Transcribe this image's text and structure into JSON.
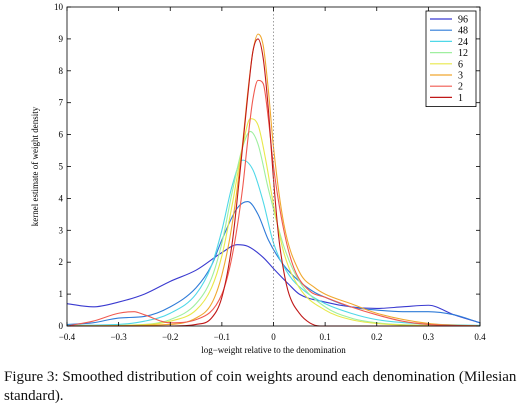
{
  "caption": "Figure 3: Smoothed distribution of coin weights around each denomination (Milesian standard).",
  "chart_data": {
    "type": "line",
    "title": "",
    "xlabel": "log−weight relative to the denomination",
    "ylabel": "kernel estimate of weight density",
    "xlim": [
      -0.4,
      0.4
    ],
    "ylim": [
      0,
      10
    ],
    "xticks": [
      -0.4,
      -0.3,
      -0.2,
      -0.1,
      0,
      0.1,
      0.2,
      0.3,
      0.4
    ],
    "xtick_labels": [
      "−0.4",
      "−0.3",
      "−0.2",
      "−0.1",
      "0",
      "0.1",
      "0.2",
      "0.3",
      "0.4"
    ],
    "yticks": [
      0,
      1,
      2,
      3,
      4,
      5,
      6,
      7,
      8,
      9,
      10
    ],
    "ytick_labels": [
      "0",
      "1",
      "2",
      "3",
      "4",
      "5",
      "6",
      "7",
      "8",
      "9",
      "10"
    ],
    "grid": false,
    "legend_position": "top-right",
    "reference_line": {
      "x": 0,
      "style": "dotted"
    },
    "series": [
      {
        "name": "96",
        "color": "#3a3ad0",
        "x": [
          -0.4,
          -0.35,
          -0.3,
          -0.25,
          -0.2,
          -0.15,
          -0.1,
          -0.07,
          -0.05,
          -0.02,
          0,
          0.03,
          0.05,
          0.1,
          0.15,
          0.2,
          0.25,
          0.3,
          0.35,
          0.4
        ],
        "y": [
          0.7,
          0.6,
          0.75,
          1.0,
          1.4,
          1.75,
          2.3,
          2.55,
          2.5,
          2.15,
          1.8,
          1.3,
          1.0,
          0.75,
          0.6,
          0.55,
          0.6,
          0.65,
          0.35,
          0.1
        ]
      },
      {
        "name": "48",
        "color": "#2f7bd8",
        "x": [
          -0.4,
          -0.35,
          -0.3,
          -0.25,
          -0.2,
          -0.15,
          -0.12,
          -0.1,
          -0.07,
          -0.05,
          -0.03,
          -0.01,
          0.02,
          0.05,
          0.08,
          0.1,
          0.15,
          0.2,
          0.25,
          0.3,
          0.35,
          0.4
        ],
        "y": [
          0.05,
          0.1,
          0.25,
          0.3,
          0.6,
          1.2,
          1.9,
          2.7,
          3.7,
          3.9,
          3.5,
          2.7,
          1.9,
          1.4,
          1.05,
          0.9,
          0.6,
          0.5,
          0.45,
          0.45,
          0.35,
          0.1
        ]
      },
      {
        "name": "24",
        "color": "#4fd8e8",
        "x": [
          -0.4,
          -0.3,
          -0.25,
          -0.2,
          -0.15,
          -0.12,
          -0.1,
          -0.08,
          -0.06,
          -0.04,
          -0.02,
          0,
          0.03,
          0.06,
          0.1,
          0.15,
          0.2,
          0.3,
          0.4
        ],
        "y": [
          0.02,
          0.05,
          0.15,
          0.4,
          1.0,
          1.9,
          3.0,
          4.4,
          5.2,
          4.9,
          3.9,
          2.6,
          1.6,
          1.1,
          0.7,
          0.4,
          0.2,
          0.06,
          0.02
        ]
      },
      {
        "name": "12",
        "color": "#9fef9f",
        "x": [
          -0.4,
          -0.25,
          -0.2,
          -0.15,
          -0.12,
          -0.1,
          -0.08,
          -0.06,
          -0.045,
          -0.03,
          -0.01,
          0.02,
          0.05,
          0.1,
          0.15,
          0.2,
          0.3,
          0.4
        ],
        "y": [
          0.0,
          0.05,
          0.2,
          0.7,
          1.5,
          2.6,
          4.2,
          5.6,
          6.1,
          5.7,
          4.3,
          2.5,
          1.4,
          0.6,
          0.25,
          0.1,
          0.02,
          0.0
        ]
      },
      {
        "name": "6",
        "color": "#e8e84a",
        "x": [
          -0.4,
          -0.25,
          -0.2,
          -0.15,
          -0.12,
          -0.1,
          -0.08,
          -0.06,
          -0.045,
          -0.03,
          -0.015,
          0,
          0.02,
          0.05,
          0.1,
          0.15,
          0.2,
          0.3,
          0.4
        ],
        "y": [
          0.0,
          0.04,
          0.15,
          0.5,
          1.2,
          2.2,
          3.8,
          5.6,
          6.5,
          6.3,
          5.2,
          3.8,
          2.3,
          1.2,
          0.5,
          0.2,
          0.08,
          0.01,
          0.0
        ]
      },
      {
        "name": "3",
        "color": "#f0a830",
        "x": [
          -0.4,
          -0.2,
          -0.15,
          -0.12,
          -0.1,
          -0.08,
          -0.06,
          -0.05,
          -0.04,
          -0.03,
          -0.02,
          -0.01,
          0,
          0.02,
          0.05,
          0.08,
          0.1,
          0.15,
          0.2,
          0.3,
          0.4
        ],
        "y": [
          0.0,
          0.05,
          0.25,
          0.7,
          1.6,
          3.2,
          5.7,
          7.3,
          8.6,
          9.15,
          8.8,
          7.4,
          5.6,
          3.2,
          1.7,
          1.2,
          1.0,
          0.7,
          0.4,
          0.08,
          0.0
        ]
      },
      {
        "name": "2",
        "color": "#f05a50",
        "x": [
          -0.4,
          -0.35,
          -0.3,
          -0.27,
          -0.25,
          -0.2,
          -0.15,
          -0.1,
          -0.08,
          -0.06,
          -0.05,
          -0.04,
          -0.03,
          -0.02,
          -0.01,
          0,
          0.02,
          0.04,
          0.07,
          0.1,
          0.15,
          0.2,
          0.25,
          0.3,
          0.4
        ],
        "y": [
          0.0,
          0.15,
          0.4,
          0.45,
          0.35,
          0.1,
          0.2,
          1.0,
          2.2,
          4.3,
          5.8,
          7.1,
          7.7,
          7.6,
          6.5,
          5.0,
          3.0,
          1.8,
          1.1,
          0.9,
          0.6,
          0.35,
          0.15,
          0.05,
          0.0
        ]
      },
      {
        "name": "1",
        "color": "#c01818",
        "x": [
          -0.4,
          -0.2,
          -0.15,
          -0.12,
          -0.1,
          -0.08,
          -0.065,
          -0.05,
          -0.04,
          -0.03,
          -0.02,
          -0.01,
          0,
          0.01,
          0.02,
          0.03,
          0.05,
          0.07,
          0.09,
          0.1,
          0.2,
          0.4
        ],
        "y": [
          0.0,
          0.0,
          0.05,
          0.25,
          0.9,
          2.6,
          4.8,
          7.2,
          8.6,
          9.0,
          8.4,
          6.8,
          4.6,
          2.8,
          1.7,
          1.0,
          0.4,
          0.1,
          0.0,
          0.0,
          0.0,
          0.0
        ]
      }
    ]
  }
}
